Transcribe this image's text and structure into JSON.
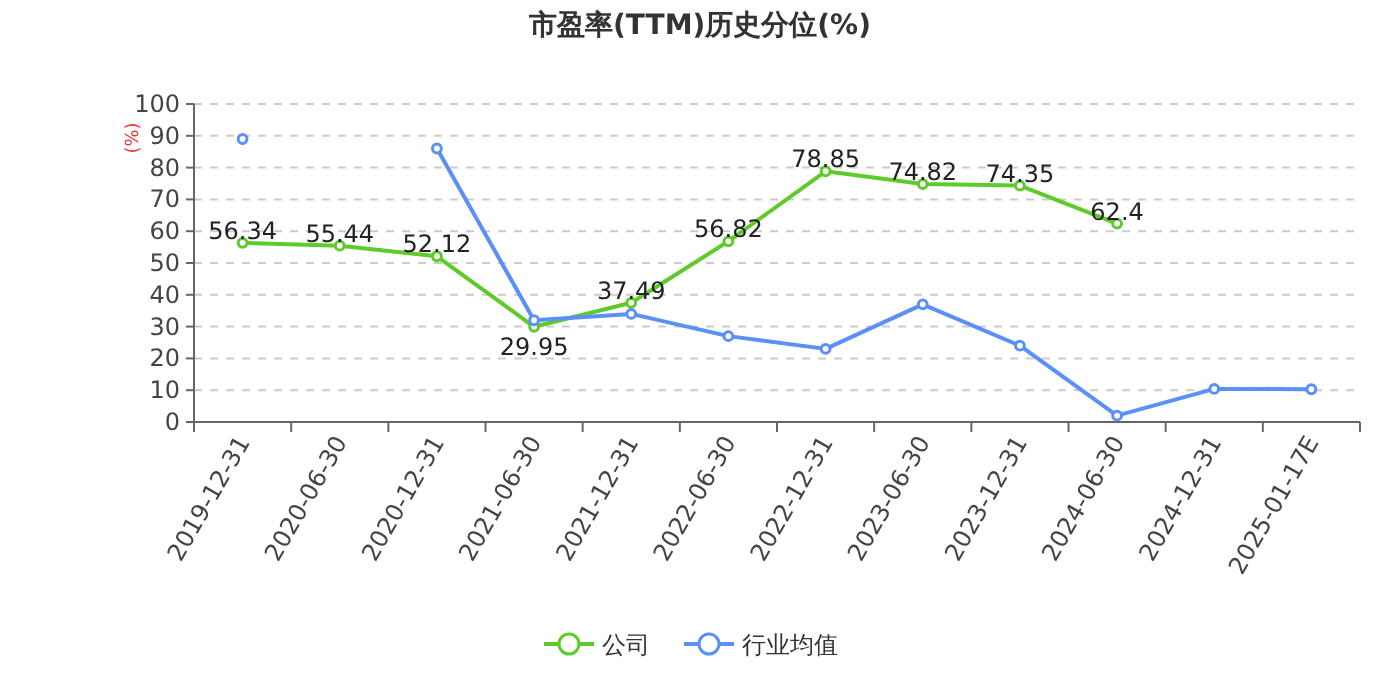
{
  "chart_data": {
    "type": "line",
    "title": "市盈率(TTM)历史分位(%)",
    "ylabel": "(%)",
    "categories": [
      "2019-12-31",
      "2020-06-30",
      "2020-12-31",
      "2021-06-30",
      "2021-12-31",
      "2022-06-30",
      "2022-12-31",
      "2023-06-30",
      "2023-12-31",
      "2024-06-30",
      "2024-12-31",
      "2025-01-17E"
    ],
    "series": [
      {
        "name": "公司",
        "color": "#5fcb2b",
        "values": [
          56.34,
          55.44,
          52.12,
          29.95,
          37.49,
          56.82,
          78.85,
          74.82,
          74.35,
          62.4,
          null,
          null
        ],
        "value_labels": [
          "56.34",
          "55.44",
          "52.12",
          "29.95",
          "37.49",
          "56.82",
          "78.85",
          "74.82",
          "74.35",
          "62.4",
          null,
          null
        ]
      },
      {
        "name": "行业均值",
        "color": "#5b8ff9",
        "values": [
          89,
          null,
          86,
          32,
          34,
          27,
          23,
          37,
          24,
          2,
          10.4,
          10.3
        ]
      }
    ],
    "ylim": [
      0,
      100
    ],
    "yticks": [
      0,
      10,
      20,
      30,
      40,
      50,
      60,
      70,
      80,
      90,
      100
    ],
    "grid": "y",
    "legend": "bottom",
    "marker": "circle",
    "line_style": "solid"
  }
}
